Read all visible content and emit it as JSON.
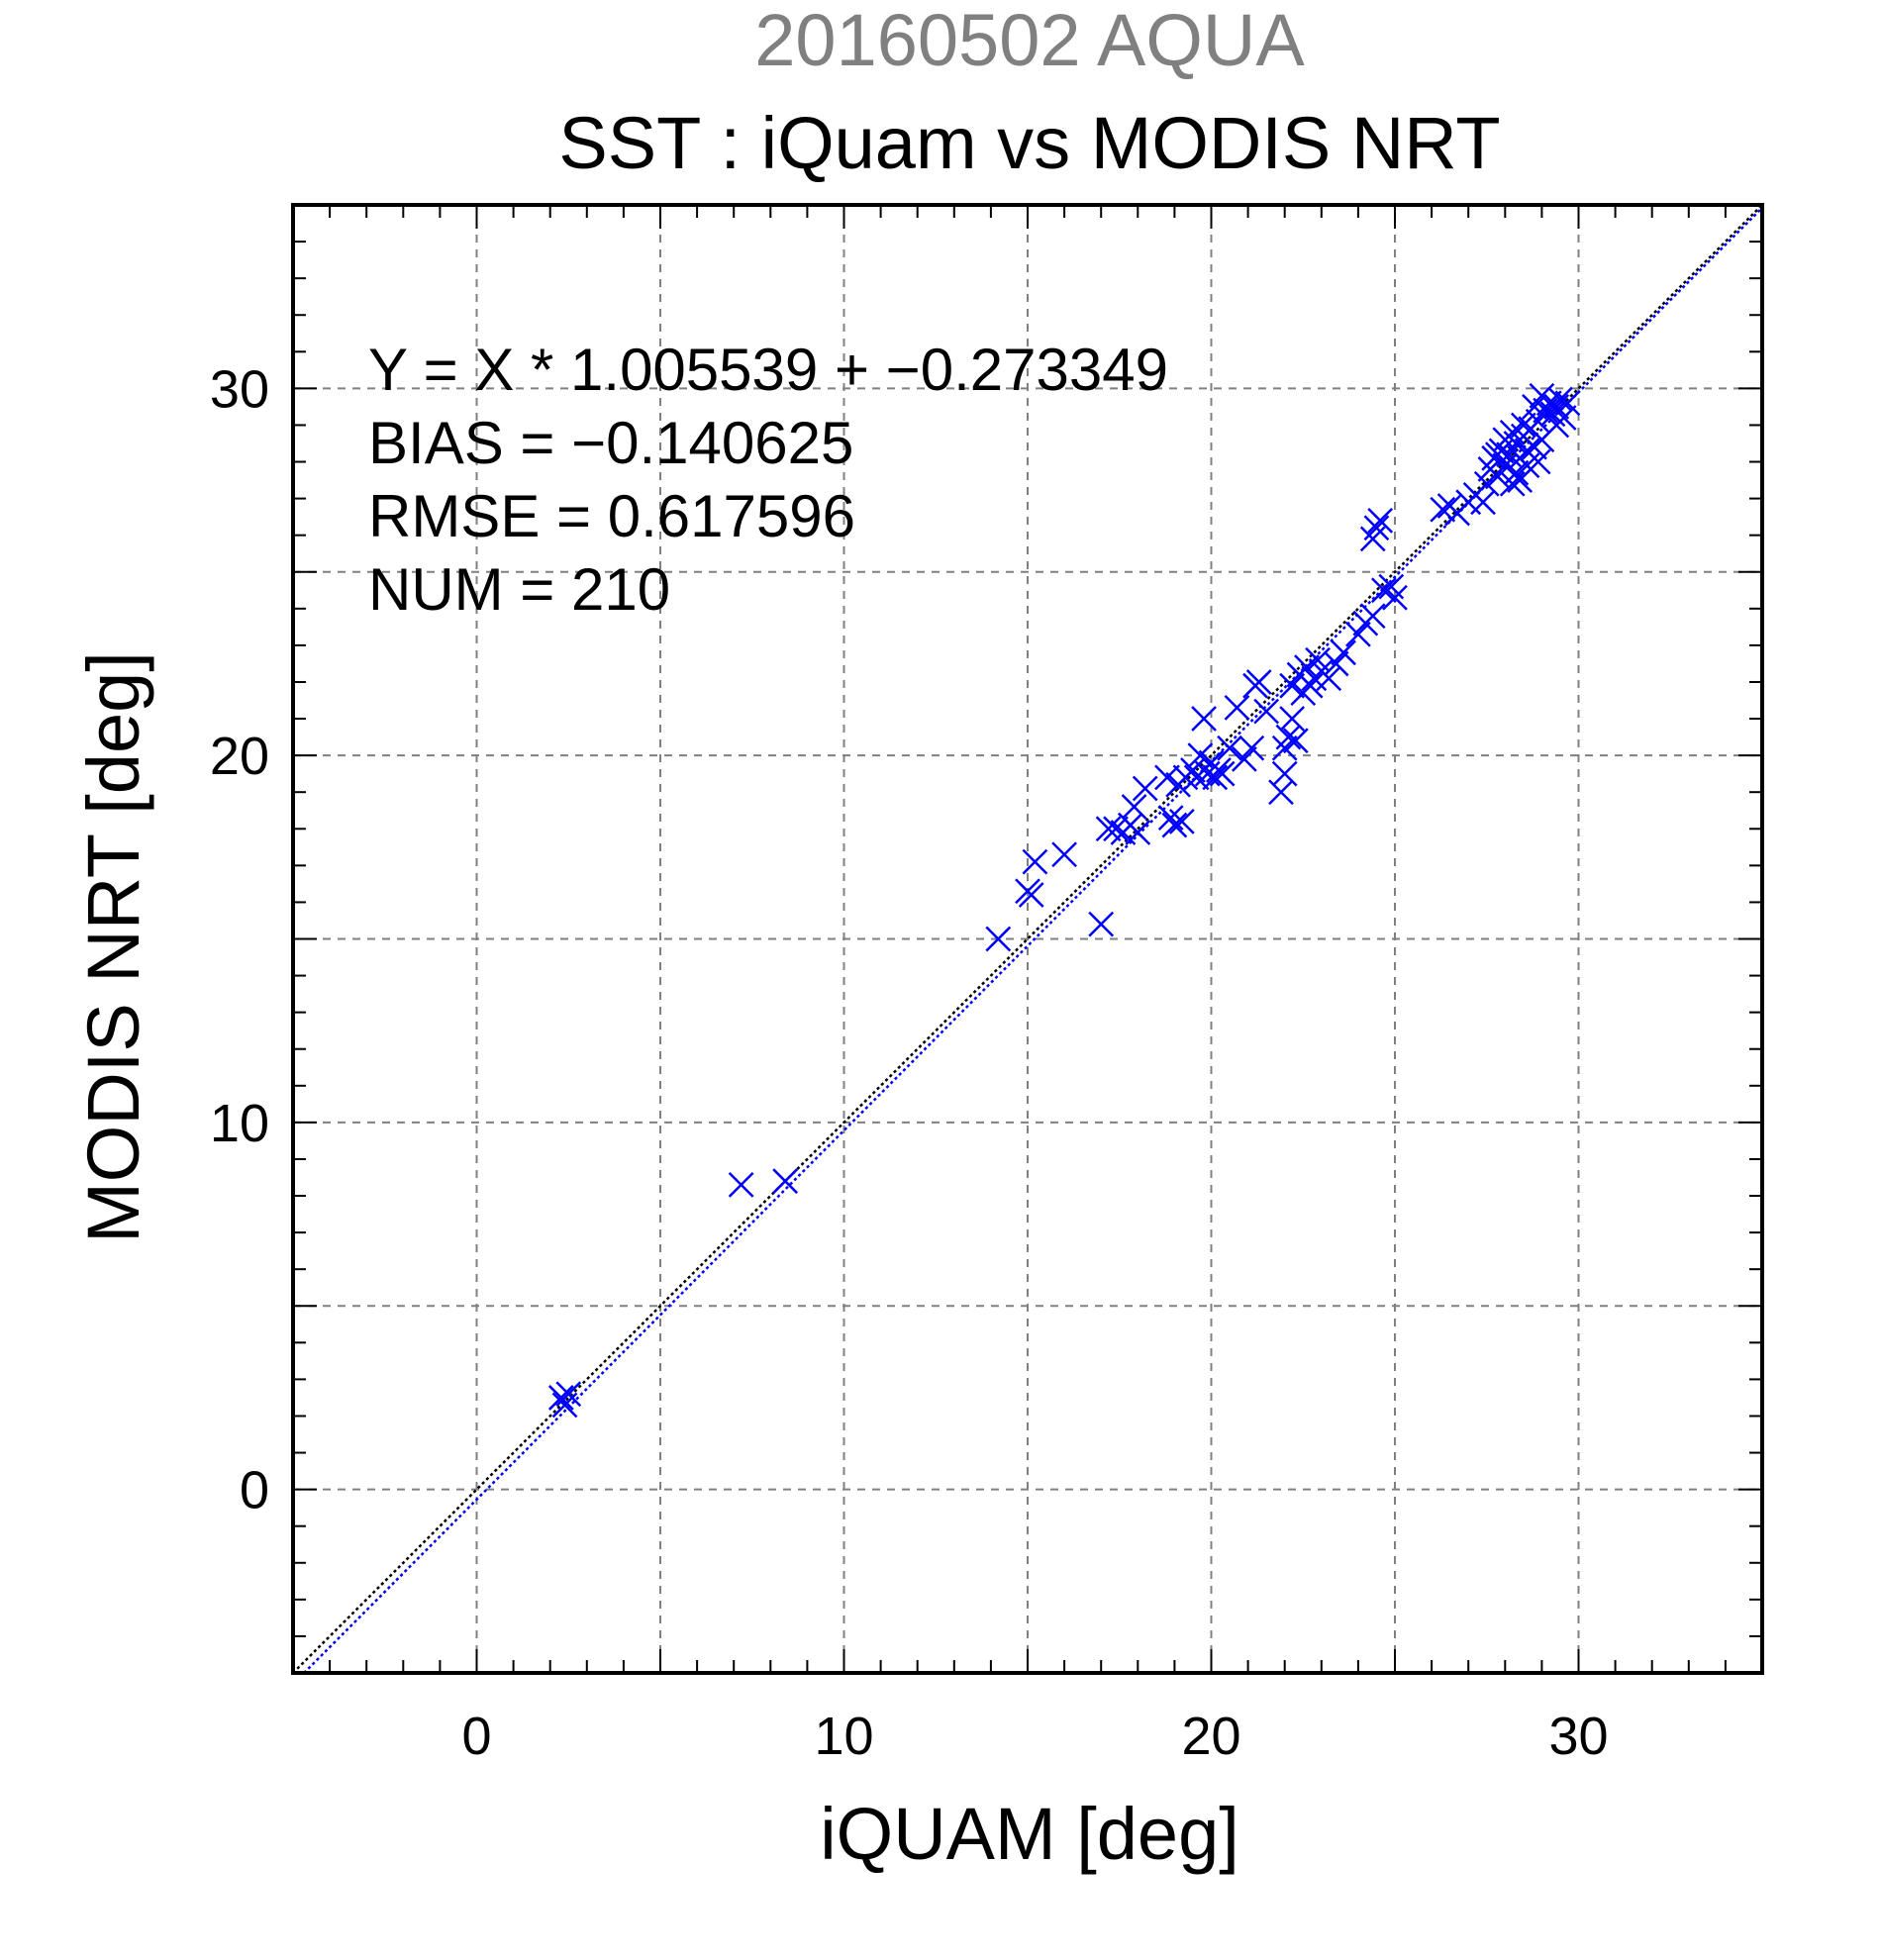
{
  "chart_data": {
    "type": "scatter",
    "title": "20160502 AQUA",
    "subtitle": "SST : iQuam vs MODIS NRT",
    "xlabel": "iQUAM [deg]",
    "ylabel": "MODIS NRT [deg]",
    "xlim": [
      -5,
      35
    ],
    "ylim": [
      -5,
      35
    ],
    "xticks": [
      0,
      10,
      20,
      30
    ],
    "yticks": [
      0,
      10,
      20,
      30
    ],
    "grid": true,
    "grid_step": 5,
    "marker": "x",
    "colors": {
      "points": "#0000ff",
      "identity_line": "#000000",
      "fit_line": "#0000ff",
      "grid": "#808080"
    },
    "stats": [
      "Y = X * 1.005539 + −0.273349",
      "BIAS = −0.140625",
      "RMSE = 0.617596",
      "NUM = 210"
    ],
    "fit": {
      "slope": 1.005539,
      "intercept": -0.273349
    },
    "reference_line": {
      "slope": 1,
      "intercept": 0
    },
    "series": [
      {
        "points": [
          [
            2.3,
            2.5
          ],
          [
            2.4,
            2.3
          ],
          [
            2.5,
            2.6
          ],
          [
            7.2,
            8.3
          ],
          [
            8.4,
            8.4
          ],
          [
            14.2,
            15.0
          ],
          [
            15.0,
            16.3
          ],
          [
            15.1,
            16.2
          ],
          [
            15.2,
            17.1
          ],
          [
            16.0,
            17.3
          ],
          [
            17.0,
            15.4
          ],
          [
            17.2,
            18.0
          ],
          [
            17.4,
            18.0
          ],
          [
            17.6,
            17.9
          ],
          [
            17.8,
            18.1
          ],
          [
            17.9,
            18.6
          ],
          [
            18.0,
            17.9
          ],
          [
            18.2,
            19.1
          ],
          [
            18.8,
            19.4
          ],
          [
            18.9,
            18.3
          ],
          [
            19.0,
            18.1
          ],
          [
            19.1,
            19.2
          ],
          [
            19.2,
            18.2
          ],
          [
            19.3,
            19.4
          ],
          [
            19.5,
            19.6
          ],
          [
            19.6,
            19.4
          ],
          [
            19.7,
            20.0
          ],
          [
            19.8,
            21.0
          ],
          [
            19.9,
            19.5
          ],
          [
            20.0,
            19.8
          ],
          [
            20.1,
            19.4
          ],
          [
            20.2,
            19.6
          ],
          [
            20.3,
            19.5
          ],
          [
            20.5,
            20.2
          ],
          [
            20.7,
            21.3
          ],
          [
            20.9,
            19.9
          ],
          [
            21.1,
            20.2
          ],
          [
            21.2,
            21.9
          ],
          [
            21.3,
            22.0
          ],
          [
            21.5,
            21.2
          ],
          [
            21.9,
            19.0
          ],
          [
            22.0,
            19.5
          ],
          [
            22.0,
            20.2
          ],
          [
            22.1,
            20.5
          ],
          [
            22.2,
            21.0
          ],
          [
            22.3,
            20.4
          ],
          [
            22.2,
            21.9
          ],
          [
            22.4,
            22.2
          ],
          [
            22.5,
            21.7
          ],
          [
            22.6,
            22.4
          ],
          [
            22.7,
            21.9
          ],
          [
            22.8,
            22.1
          ],
          [
            22.9,
            22.6
          ],
          [
            23.0,
            22.3
          ],
          [
            23.2,
            22.1
          ],
          [
            23.4,
            22.5
          ],
          [
            23.6,
            22.8
          ],
          [
            24.0,
            23.3
          ],
          [
            24.2,
            23.6
          ],
          [
            24.4,
            23.8
          ],
          [
            24.4,
            25.9
          ],
          [
            24.5,
            26.2
          ],
          [
            24.6,
            26.4
          ],
          [
            24.7,
            24.5
          ],
          [
            24.9,
            24.6
          ],
          [
            25.0,
            24.3
          ],
          [
            26.3,
            26.7
          ],
          [
            26.5,
            26.8
          ],
          [
            26.7,
            26.6
          ],
          [
            27.0,
            26.9
          ],
          [
            27.2,
            27.1
          ],
          [
            27.4,
            26.9
          ],
          [
            27.5,
            27.4
          ],
          [
            27.6,
            27.8
          ],
          [
            27.7,
            28.1
          ],
          [
            27.8,
            27.6
          ],
          [
            27.9,
            28.3
          ],
          [
            28.0,
            27.9
          ],
          [
            28.1,
            28.2
          ],
          [
            28.2,
            27.4
          ],
          [
            28.3,
            28.5
          ],
          [
            28.4,
            28.1
          ],
          [
            28.5,
            28.7
          ],
          [
            28.6,
            27.9
          ],
          [
            28.7,
            28.9
          ],
          [
            28.8,
            28.4
          ],
          [
            28.9,
            29.1
          ],
          [
            29.0,
            28.6
          ],
          [
            29.1,
            29.4
          ],
          [
            29.2,
            29.6
          ],
          [
            29.3,
            29.3
          ],
          [
            29.4,
            29.5
          ],
          [
            29.5,
            29.7
          ],
          [
            29.6,
            29.2
          ],
          [
            29.7,
            29.6
          ],
          [
            28.3,
            27.7
          ],
          [
            28.5,
            29.0
          ],
          [
            28.8,
            29.5
          ],
          [
            28.0,
            28.6
          ],
          [
            27.8,
            28.2
          ],
          [
            29.0,
            29.8
          ],
          [
            28.6,
            28.3
          ],
          [
            28.2,
            28.8
          ],
          [
            28.9,
            28.0
          ],
          [
            29.4,
            29.0
          ],
          [
            28.4,
            27.5
          ]
        ]
      }
    ]
  }
}
